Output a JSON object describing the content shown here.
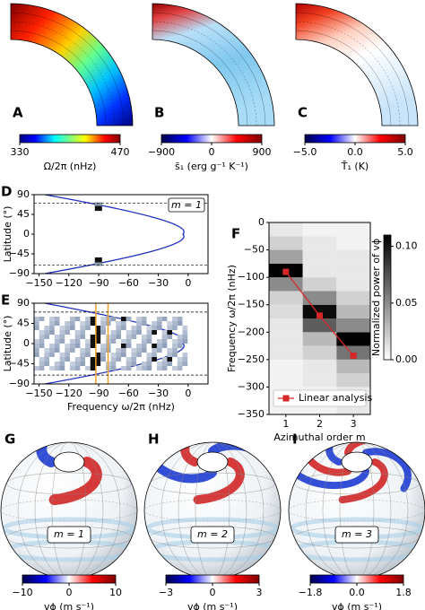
{
  "chart_data": [
    {
      "type": "meridional",
      "panel": "A",
      "colorbar": {
        "label": "Ω/2π (nHz)",
        "lim": [
          330,
          470
        ],
        "ticks": [
          330,
          470
        ],
        "cmap": "jet"
      }
    },
    {
      "type": "meridional",
      "panel": "B",
      "colorbar": {
        "label": "s̄₁ (erg g⁻¹ K⁻¹)",
        "lim": [
          -900,
          900
        ],
        "ticks": [
          {
            "value": -900,
            "label": "−900"
          },
          0,
          900
        ],
        "cmap": "seismic"
      }
    },
    {
      "type": "meridional",
      "panel": "C",
      "colorbar": {
        "label": "T̄₁ (K)",
        "lim": [
          -5,
          5
        ],
        "ticks": [
          {
            "value": -5,
            "label": "−5.0"
          },
          {
            "value": 0,
            "label": "0.0"
          },
          {
            "value": 5,
            "label": "5.0"
          }
        ],
        "cmap": "seismic"
      }
    },
    {
      "type": "latfreq",
      "panel": "D",
      "ylabel": "Latitude (°)",
      "annotation": "m = 1",
      "xlim": [
        -155,
        20
      ],
      "ylim": [
        -90,
        90
      ],
      "xticks": [
        {
          "value": -150,
          "label": "−150"
        },
        {
          "value": -120,
          "label": "−120"
        },
        {
          "value": -90,
          "label": "−90"
        },
        {
          "value": -60,
          "label": "−60"
        },
        {
          "value": -30,
          "label": "−30"
        },
        0
      ],
      "yticks": [
        {
          "value": -90,
          "label": "−90"
        },
        {
          "value": -45,
          "label": "−45"
        },
        0,
        45,
        90
      ]
    },
    {
      "type": "latfreq",
      "panel": "E",
      "ylabel": "Latitude (°)",
      "xlabel": "Frequency  ω/2π  (nHz)",
      "xlim": [
        -155,
        20
      ],
      "ylim": [
        -90,
        90
      ],
      "xticks": [
        {
          "value": -150,
          "label": "−150"
        },
        {
          "value": -120,
          "label": "−120"
        },
        {
          "value": -90,
          "label": "−90"
        },
        {
          "value": -60,
          "label": "−60"
        },
        {
          "value": -30,
          "label": "−30"
        },
        0
      ],
      "yticks": [
        {
          "value": -90,
          "label": "−90"
        },
        {
          "value": -45,
          "label": "−45"
        },
        0,
        45,
        90
      ]
    },
    {
      "type": "heatmap",
      "panel": "F",
      "ylabel": "Frequency  ω/2π (nHz)",
      "xlabel": "Azimuthal order m",
      "xlim": [
        0.5,
        3.5
      ],
      "xticks": [
        1,
        2,
        3
      ],
      "ylim": [
        -350,
        0
      ],
      "yticks": [
        {
          "value": -350,
          "label": "−350"
        },
        {
          "value": -300,
          "label": "−300"
        },
        {
          "value": -250,
          "label": "−250"
        },
        {
          "value": -200,
          "label": "−200"
        },
        {
          "value": -150,
          "label": "−150"
        },
        {
          "value": -100,
          "label": "−100"
        },
        {
          "value": -50,
          "label": "−50"
        },
        0
      ],
      "bins": [
        -350,
        -325,
        -300,
        -275,
        -250,
        -225,
        -200,
        -175,
        -150,
        -125,
        -100,
        -75,
        -50,
        -25,
        0
      ],
      "z": [
        [
          0.005,
          0.005,
          0.005,
          0.005,
          0.01,
          0.01,
          0.01,
          0.015,
          0.02,
          0.05,
          0.11,
          0.04,
          0.02,
          0.01
        ],
        [
          0.005,
          0.005,
          0.01,
          0.01,
          0.02,
          0.03,
          0.07,
          0.105,
          0.05,
          0.02,
          0.01,
          0.01,
          0.01,
          0.005
        ],
        [
          0.01,
          0.01,
          0.02,
          0.03,
          0.06,
          0.11,
          0.05,
          0.03,
          0.02,
          0.01,
          0.01,
          0.01,
          0.005,
          0.005
        ]
      ],
      "zlim": [
        0,
        0.11
      ],
      "zcmap": "gray_r",
      "zticks": [
        {
          "value": 0,
          "label": "0.00"
        },
        {
          "value": 0.05,
          "label": "0.05"
        },
        {
          "value": 0.1,
          "label": "0.10"
        }
      ],
      "zlabel": "Normalized power of vϕ",
      "series": [
        {
          "name": "Linear analysis",
          "color": "#d62728",
          "x": [
            1,
            2,
            3
          ],
          "values": [
            -90,
            -170,
            -243
          ]
        }
      ]
    },
    {
      "type": "sphere",
      "panel": "G",
      "annotation": "m = 1",
      "colorbar": {
        "label": "vϕ (m s⁻¹)",
        "lim": [
          -10,
          10
        ],
        "ticks": [
          {
            "value": -10,
            "label": "−10"
          },
          0,
          10
        ],
        "cmap": "seismic"
      }
    },
    {
      "type": "sphere",
      "panel": "H",
      "annotation": "m = 2",
      "colorbar": {
        "label": "vϕ (m s⁻¹)",
        "lim": [
          -3,
          3
        ],
        "ticks": [
          {
            "value": -3,
            "label": "−3"
          },
          0,
          3
        ],
        "cmap": "seismic"
      }
    },
    {
      "type": "sphere",
      "panel": "I",
      "annotation": "m = 3",
      "colorbar": {
        "label": "vϕ (m s⁻¹)",
        "lim": [
          -1.8,
          1.8
        ],
        "ticks": [
          {
            "value": -1.8,
            "label": "−1.8"
          },
          {
            "value": 0,
            "label": "0.0"
          },
          1.8
        ],
        "cmap": "seismic"
      }
    }
  ]
}
